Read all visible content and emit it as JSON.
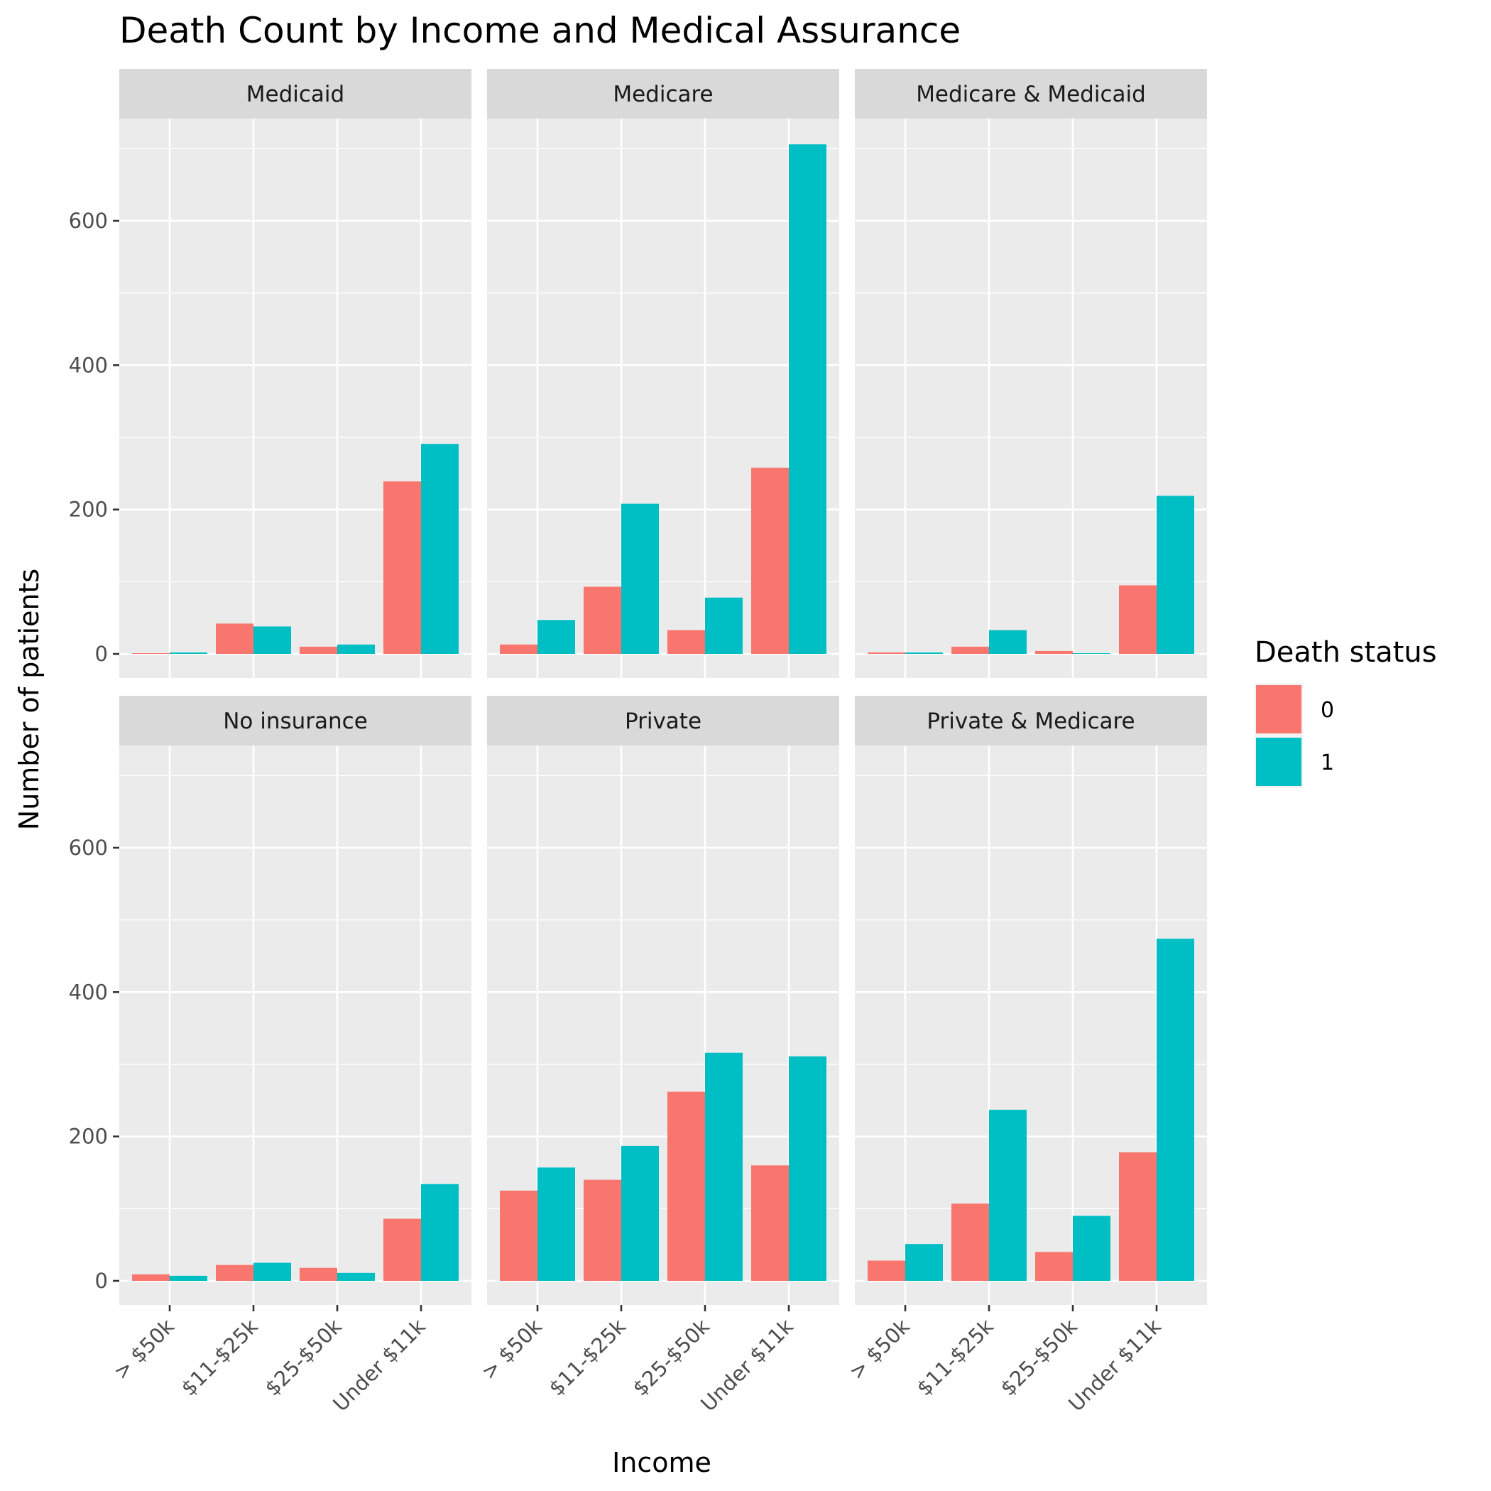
{
  "chart_data": {
    "type": "bar",
    "title": "Death Count by Income and Medical Assurance",
    "xlabel": "Income",
    "ylabel": "Number of patients",
    "ylim": [
      0,
      740
    ],
    "yticks": [
      0,
      200,
      400,
      600
    ],
    "categories": [
      "> $50k",
      "$11-$25k",
      "$25-$50k",
      "Under $11k"
    ],
    "legend": {
      "title": "Death status",
      "placement": "right",
      "entries": [
        {
          "label": "0",
          "color": "#F8766D"
        },
        {
          "label": "1",
          "color": "#00BFC4"
        }
      ]
    },
    "grid": true,
    "panels": [
      {
        "name": "Medicaid",
        "series": [
          {
            "name": "0",
            "values": [
              1,
              42,
              10,
              239
            ]
          },
          {
            "name": "1",
            "values": [
              2,
              38,
              13,
              291
            ]
          }
        ]
      },
      {
        "name": "Medicare",
        "series": [
          {
            "name": "0",
            "values": [
              13,
              93,
              33,
              258
            ]
          },
          {
            "name": "1",
            "values": [
              47,
              208,
              78,
              706
            ]
          }
        ]
      },
      {
        "name": "Medicare & Medicaid",
        "series": [
          {
            "name": "0",
            "values": [
              2,
              10,
              4,
              95
            ]
          },
          {
            "name": "1",
            "values": [
              2,
              33,
              1,
              219
            ]
          }
        ]
      },
      {
        "name": "No insurance",
        "series": [
          {
            "name": "0",
            "values": [
              9,
              22,
              18,
              86
            ]
          },
          {
            "name": "1",
            "values": [
              7,
              25,
              11,
              134
            ]
          }
        ]
      },
      {
        "name": "Private",
        "series": [
          {
            "name": "0",
            "values": [
              125,
              140,
              262,
              160
            ]
          },
          {
            "name": "1",
            "values": [
              157,
              187,
              316,
              311
            ]
          }
        ]
      },
      {
        "name": "Private & Medicare",
        "series": [
          {
            "name": "0",
            "values": [
              28,
              107,
              40,
              178
            ]
          },
          {
            "name": "1",
            "values": [
              51,
              237,
              90,
              474
            ]
          }
        ]
      }
    ]
  },
  "colors": {
    "panel_background": "#EBEBEB",
    "strip_background": "#D9D9D9",
    "grid": "#FFFFFF"
  }
}
